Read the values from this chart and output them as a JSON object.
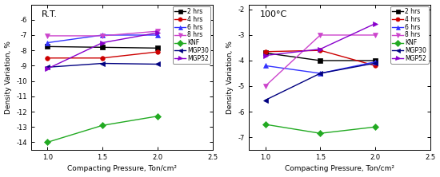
{
  "left": {
    "title": "R.T.",
    "x": [
      1.0,
      1.5,
      2.0
    ],
    "series_order": [
      "2 hrs",
      "4 hrs",
      "6 hrs",
      "8 hrs",
      "KNF",
      "MGP30",
      "MGP52"
    ],
    "series": {
      "2 hrs": {
        "y": [
          -7.75,
          -7.8,
          -7.85
        ],
        "color": "#000000",
        "marker": "s"
      },
      "4 hrs": {
        "y": [
          -8.5,
          -8.5,
          -8.1
        ],
        "color": "#cc0000",
        "marker": "o"
      },
      "6 hrs": {
        "y": [
          -7.5,
          -7.0,
          -7.0
        ],
        "color": "#3333ff",
        "marker": "^"
      },
      "8 hrs": {
        "y": [
          -7.05,
          -7.05,
          -6.75
        ],
        "color": "#cc44cc",
        "marker": "v"
      },
      "KNF": {
        "y": [
          -14.0,
          -12.9,
          -12.3
        ],
        "color": "#22aa22",
        "marker": "D"
      },
      "MGP30": {
        "y": [
          -9.1,
          -8.85,
          -8.9
        ],
        "color": "#000080",
        "marker": "<"
      },
      "MGP52": {
        "y": [
          -9.2,
          -7.5,
          -6.85
        ],
        "color": "#8800cc",
        "marker": ">"
      }
    },
    "ylim": [
      -14.5,
      -5.0
    ],
    "yticks": [
      -14,
      -13,
      -12,
      -11,
      -10,
      -9,
      -8,
      -7,
      -6
    ],
    "xlabel": "Compacting Pressure, Ton/cm²",
    "ylabel": "Density Variation, %"
  },
  "right": {
    "title": "100°C",
    "x": [
      1.0,
      1.5,
      2.0
    ],
    "series_order": [
      "2 hrs",
      "4 hrs",
      "6 hrs",
      "8 hrs",
      "KNF",
      "MGP30",
      "MGP52"
    ],
    "series": {
      "2 hrs": {
        "y": [
          -3.7,
          -4.0,
          -4.0
        ],
        "color": "#000000",
        "marker": "s"
      },
      "4 hrs": {
        "y": [
          -3.65,
          -3.6,
          -4.2
        ],
        "color": "#cc0000",
        "marker": "o"
      },
      "6 hrs": {
        "y": [
          -4.2,
          -4.5,
          -4.05
        ],
        "color": "#3333ff",
        "marker": "^"
      },
      "8 hrs": {
        "y": [
          -5.0,
          -3.0,
          -3.0
        ],
        "color": "#cc44cc",
        "marker": "v"
      },
      "KNF": {
        "y": [
          -6.5,
          -6.85,
          -6.6
        ],
        "color": "#22aa22",
        "marker": "D"
      },
      "MGP30": {
        "y": [
          -5.55,
          -4.5,
          -4.1
        ],
        "color": "#000080",
        "marker": "<"
      },
      "MGP52": {
        "y": [
          -3.8,
          -3.55,
          -2.55
        ],
        "color": "#8800cc",
        "marker": ">"
      }
    },
    "ylim": [
      -7.5,
      -1.8
    ],
    "yticks": [
      -7,
      -6,
      -5,
      -4,
      -3,
      -2
    ],
    "xlabel": "Compacting Pressure, Ton/cm²",
    "ylabel": "Density Variation, %"
  },
  "xlim": [
    0.85,
    2.5
  ],
  "xticks": [
    1.0,
    1.5,
    2.0,
    2.5
  ],
  "bg_color": "#ffffff",
  "markersize": 4.0,
  "linewidth": 1.0,
  "tick_fontsize": 6,
  "label_fontsize": 6.5,
  "title_fontsize": 8,
  "legend_fontsize": 5.5
}
